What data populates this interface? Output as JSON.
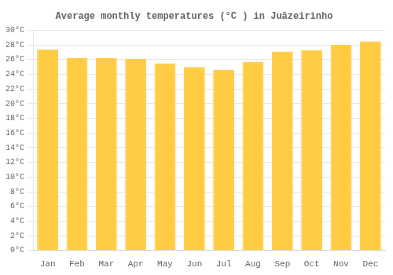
{
  "chart_data": {
    "type": "bar",
    "title": "Average monthly temperatures (°C ) in Juãzeirinho",
    "categories": [
      "Jan",
      "Feb",
      "Mar",
      "Apr",
      "May",
      "Jun",
      "Jul",
      "Aug",
      "Sep",
      "Oct",
      "Nov",
      "Dec"
    ],
    "values": [
      27.4,
      26.2,
      26.2,
      26.1,
      25.5,
      25.0,
      24.6,
      25.7,
      27.1,
      27.3,
      28.0,
      28.5
    ],
    "color": "#FFCC44",
    "ylim": [
      0,
      30
    ],
    "yticks": [
      {
        "value": 0,
        "label": "0°C"
      },
      {
        "value": 2,
        "label": "2°C"
      },
      {
        "value": 4,
        "label": "4°C"
      },
      {
        "value": 6,
        "label": "6°C"
      },
      {
        "value": 8,
        "label": "8°C"
      },
      {
        "value": 10,
        "label": "10°C"
      },
      {
        "value": 12,
        "label": "12°C"
      },
      {
        "value": 14,
        "label": "14°C"
      },
      {
        "value": 16,
        "label": "16°C"
      },
      {
        "value": 18,
        "label": "18°C"
      },
      {
        "value": 20,
        "label": "20°C"
      },
      {
        "value": 22,
        "label": "22°C"
      },
      {
        "value": 24,
        "label": "24°C"
      },
      {
        "value": 26,
        "label": "26°C"
      },
      {
        "value": 28,
        "label": "28°C"
      },
      {
        "value": 30,
        "label": "30°C"
      }
    ],
    "grid": true
  }
}
